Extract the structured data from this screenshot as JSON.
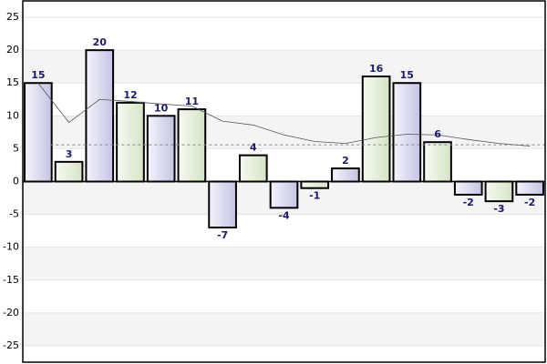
{
  "chart_data": {
    "type": "bar",
    "values": [
      15,
      3,
      20,
      12,
      10,
      11,
      -7,
      4,
      -4,
      -1,
      2,
      16,
      15,
      6,
      -2,
      -3,
      -2
    ],
    "colors": [
      "#c4c4e4",
      "#d4e4c4"
    ],
    "ylim": [
      -27.5,
      27.5
    ],
    "yticks": [
      -25,
      -20,
      -15,
      -10,
      -5,
      0,
      5,
      10,
      15,
      20,
      25
    ],
    "grid": true,
    "trend": {
      "color": "#555555",
      "values": [
        15,
        9,
        12.5,
        12.2,
        11.8,
        11.5,
        9.2,
        8.6,
        7.1,
        6.1,
        5.8,
        6.7,
        7.2,
        7.1,
        6.4,
        5.8,
        5.4
      ]
    },
    "average": 5.6
  }
}
